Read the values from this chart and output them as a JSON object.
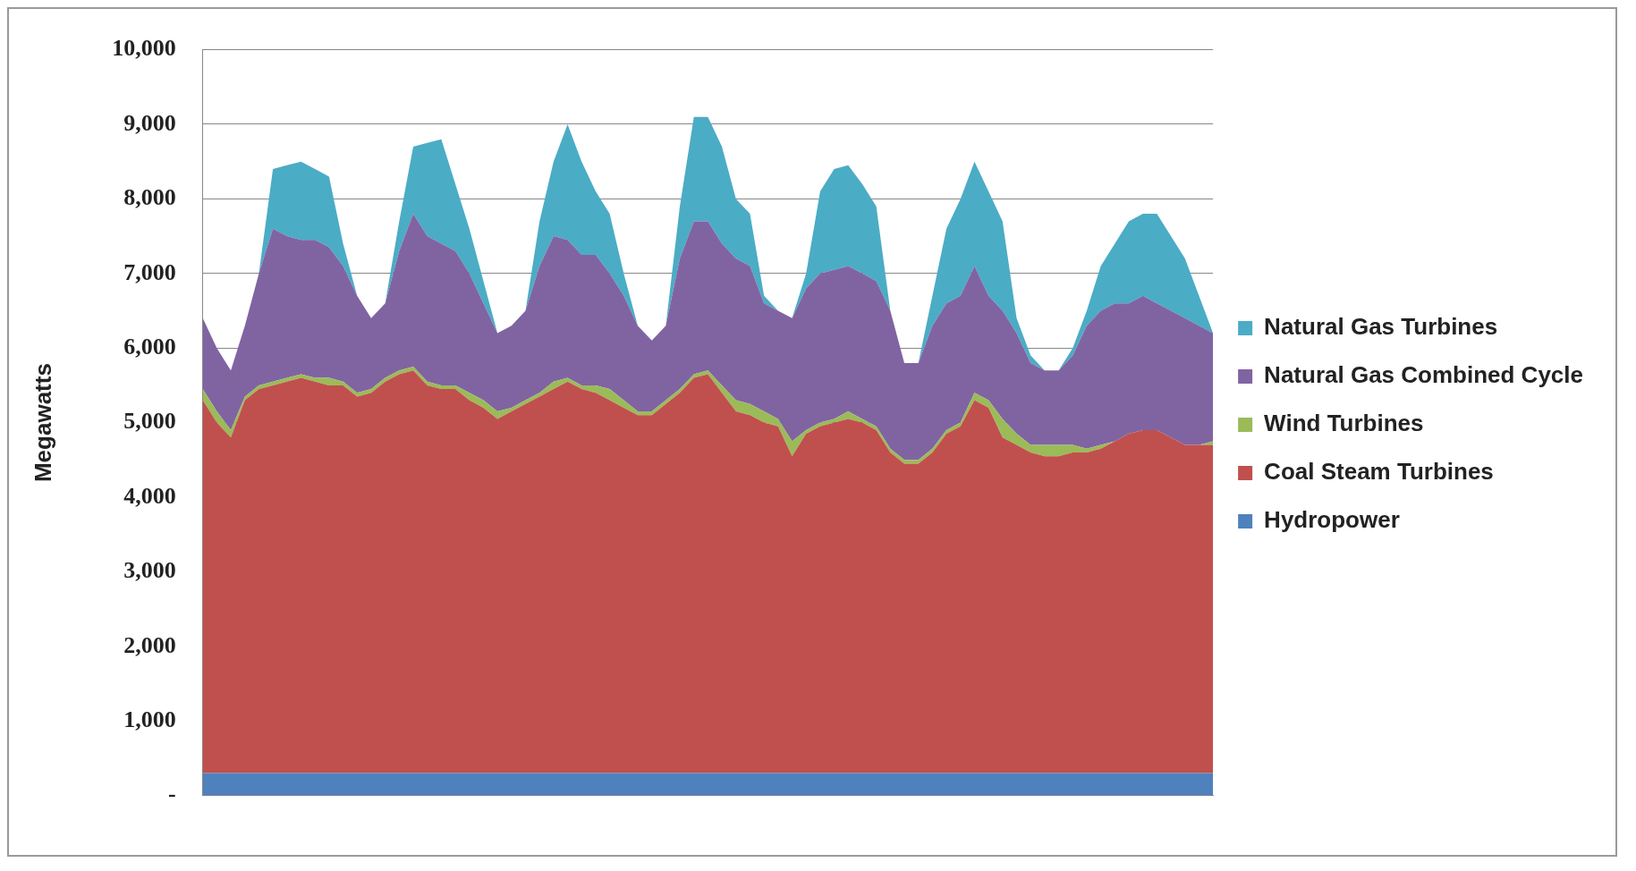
{
  "chart_data": {
    "type": "area",
    "stacked": true,
    "ylabel": "Megawatts",
    "legend": "right",
    "grid": "y",
    "marker": "none",
    "categories": [
      null,
      null,
      null,
      null,
      null,
      null,
      null,
      null,
      null,
      null,
      null,
      null,
      null,
      null,
      null,
      null,
      null,
      null,
      null,
      null,
      null,
      null,
      null,
      null,
      null,
      null,
      null,
      null,
      null,
      null,
      null,
      null,
      null,
      null,
      null,
      null,
      null,
      null,
      null,
      null,
      null,
      null,
      null,
      null,
      null,
      null,
      null,
      null,
      null,
      null,
      null,
      null,
      null,
      null,
      null,
      null,
      null,
      null,
      null,
      null,
      null,
      null,
      null,
      null,
      null,
      null,
      null,
      null,
      null,
      null,
      null,
      null,
      null
    ],
    "ylim": [
      0,
      10000
    ],
    "yticks": [
      {
        "value": 0,
        "label": "-"
      },
      {
        "value": 1000,
        "label": "1,000"
      },
      {
        "value": 2000,
        "label": "2,000"
      },
      {
        "value": 3000,
        "label": "3,000"
      },
      {
        "value": 4000,
        "label": "4,000"
      },
      {
        "value": 5000,
        "label": "5,000"
      },
      {
        "value": 6000,
        "label": "6,000"
      },
      {
        "value": 7000,
        "label": "7,000"
      },
      {
        "value": 8000,
        "label": "8,000"
      },
      {
        "value": 9000,
        "label": "9,000"
      },
      {
        "value": 10000,
        "label": "10,000"
      }
    ],
    "series": [
      {
        "name": "Hydropower",
        "color": "#4f81bd",
        "values": [
          300,
          300,
          300,
          300,
          300,
          300,
          300,
          300,
          300,
          300,
          300,
          300,
          300,
          300,
          300,
          300,
          300,
          300,
          300,
          300,
          300,
          300,
          300,
          300,
          300,
          300,
          300,
          300,
          300,
          300,
          300,
          300,
          300,
          300,
          300,
          300,
          300,
          300,
          300,
          300,
          300,
          300,
          300,
          300,
          300,
          300,
          300,
          300,
          300,
          300,
          300,
          300,
          300,
          300,
          300,
          300,
          300,
          300,
          300,
          300,
          300,
          300,
          300,
          300,
          300,
          300,
          300,
          300,
          300,
          300,
          300,
          300,
          300
        ]
      },
      {
        "name": "Coal Steam Turbines",
        "color": "#c0504d",
        "values": [
          5000,
          4700,
          4500,
          5000,
          5150,
          5200,
          5250,
          5300,
          5250,
          5200,
          5200,
          5050,
          5100,
          5250,
          5350,
          5400,
          5200,
          5150,
          5150,
          5000,
          4900,
          4750,
          4850,
          4950,
          5050,
          5150,
          5250,
          5150,
          5100,
          5000,
          4900,
          4800,
          4800,
          4950,
          5100,
          5300,
          5350,
          5100,
          4850,
          4800,
          4700,
          4650,
          4250,
          4550,
          4650,
          4700,
          4750,
          4700,
          4600,
          4300,
          4150,
          4150,
          4300,
          4550,
          4650,
          5000,
          4900,
          4500,
          4400,
          4300,
          4250,
          4250,
          4300,
          4300,
          4350,
          4450,
          4550,
          4600,
          4600,
          4500,
          4400,
          4400,
          4400
        ]
      },
      {
        "name": "Wind Turbines",
        "color": "#9bbb59",
        "values": [
          150,
          150,
          100,
          50,
          50,
          50,
          50,
          50,
          50,
          100,
          50,
          50,
          50,
          50,
          50,
          50,
          50,
          50,
          50,
          100,
          100,
          100,
          50,
          50,
          50,
          100,
          50,
          50,
          100,
          150,
          100,
          50,
          50,
          50,
          50,
          50,
          50,
          100,
          150,
          150,
          150,
          100,
          200,
          50,
          50,
          50,
          100,
          50,
          50,
          50,
          50,
          50,
          50,
          50,
          50,
          100,
          100,
          250,
          150,
          100,
          150,
          150,
          100,
          50,
          50,
          0,
          0,
          0,
          0,
          0,
          0,
          0,
          50
        ]
      },
      {
        "name": "Natural Gas Combined Cycle",
        "color": "#8064a2",
        "values": [
          950,
          850,
          800,
          950,
          1500,
          2050,
          1900,
          1800,
          1850,
          1750,
          1550,
          1300,
          950,
          1000,
          1600,
          2050,
          1950,
          1900,
          1800,
          1600,
          1300,
          1050,
          1100,
          1200,
          1700,
          1950,
          1850,
          1750,
          1750,
          1550,
          1400,
          1150,
          950,
          1000,
          1750,
          2050,
          2000,
          1900,
          1900,
          1850,
          1450,
          1450,
          1650,
          1900,
          2000,
          2000,
          1950,
          1950,
          1950,
          1850,
          1300,
          1300,
          1650,
          1700,
          1700,
          1700,
          1400,
          1450,
          1350,
          1100,
          1000,
          1000,
          1200,
          1650,
          1800,
          1850,
          1750,
          1800,
          1700,
          1700,
          1700,
          1600,
          1450
        ]
      },
      {
        "name": "Natural Gas Turbines",
        "color": "#4bacc6",
        "values": [
          0,
          0,
          0,
          0,
          0,
          800,
          950,
          1050,
          950,
          950,
          300,
          0,
          0,
          0,
          400,
          900,
          1250,
          1400,
          900,
          600,
          300,
          0,
          0,
          0,
          600,
          1000,
          1550,
          1250,
          850,
          800,
          300,
          0,
          0,
          0,
          700,
          1400,
          1400,
          1300,
          800,
          700,
          100,
          0,
          0,
          200,
          1100,
          1350,
          1350,
          1200,
          1000,
          0,
          0,
          0,
          400,
          1000,
          1300,
          1400,
          1400,
          1200,
          200,
          100,
          0,
          0,
          100,
          200,
          600,
          800,
          1100,
          1100,
          1200,
          1000,
          800,
          400,
          0
        ]
      }
    ]
  }
}
